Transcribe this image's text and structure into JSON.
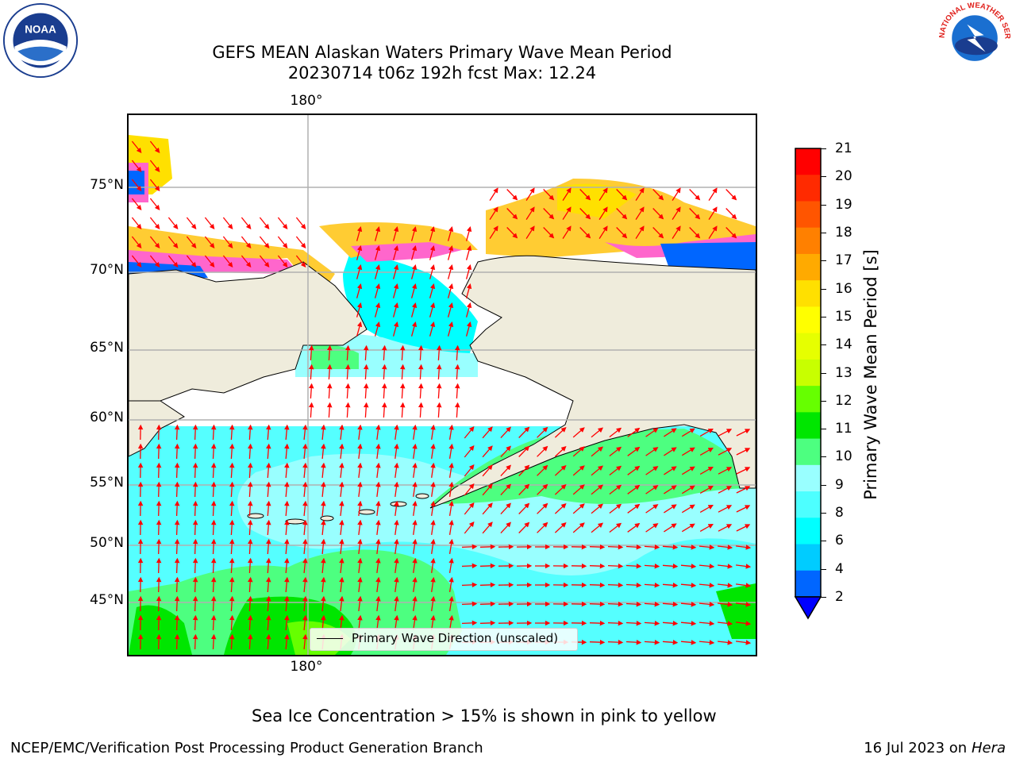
{
  "title_line1": "GEFS MEAN Alaskan Waters Primary Wave Mean Period",
  "title_line2": "20230714 t06z 192h fcst   Max: 12.24",
  "lon_label_top": "180°",
  "lon_label_bottom": "180°",
  "lat_labels": [
    "75°N",
    "70°N",
    "65°N",
    "60°N",
    "55°N",
    "50°N",
    "45°N"
  ],
  "legend_label": "Primary Wave Direction (unscaled)",
  "colorbar": {
    "label": "Primary Wave Mean Period [s]",
    "ticks": [
      "21",
      "20",
      "19",
      "18",
      "17",
      "16",
      "15",
      "14",
      "13",
      "12",
      "11",
      "10",
      "9",
      "8",
      "6",
      "4",
      "2"
    ],
    "colors": [
      "#ff0000",
      "#ff2a00",
      "#ff5500",
      "#ff8000",
      "#ffaa00",
      "#ffe000",
      "#ffff00",
      "#e6ff00",
      "#c8ff00",
      "#66ff00",
      "#00e600",
      "#4dff80",
      "#99ffff",
      "#4dffff",
      "#00ffff",
      "#00ccff",
      "#0066ff"
    ],
    "min_color": "#0000ff"
  },
  "ice_note": "Sea Ice Concentration > 15% is shown in pink to yellow",
  "footer_left": "NCEP/EMC/Verification Post Processing Product Generation Branch",
  "footer_right_prefix": "16 Jul 2023 on ",
  "footer_right_host": "Hera",
  "logos": [
    "noaa-logo",
    "nws-logo"
  ],
  "logo_text": {
    "noaa": "NOAA",
    "nws": "NATIONAL WEATHER SERVICE"
  }
}
